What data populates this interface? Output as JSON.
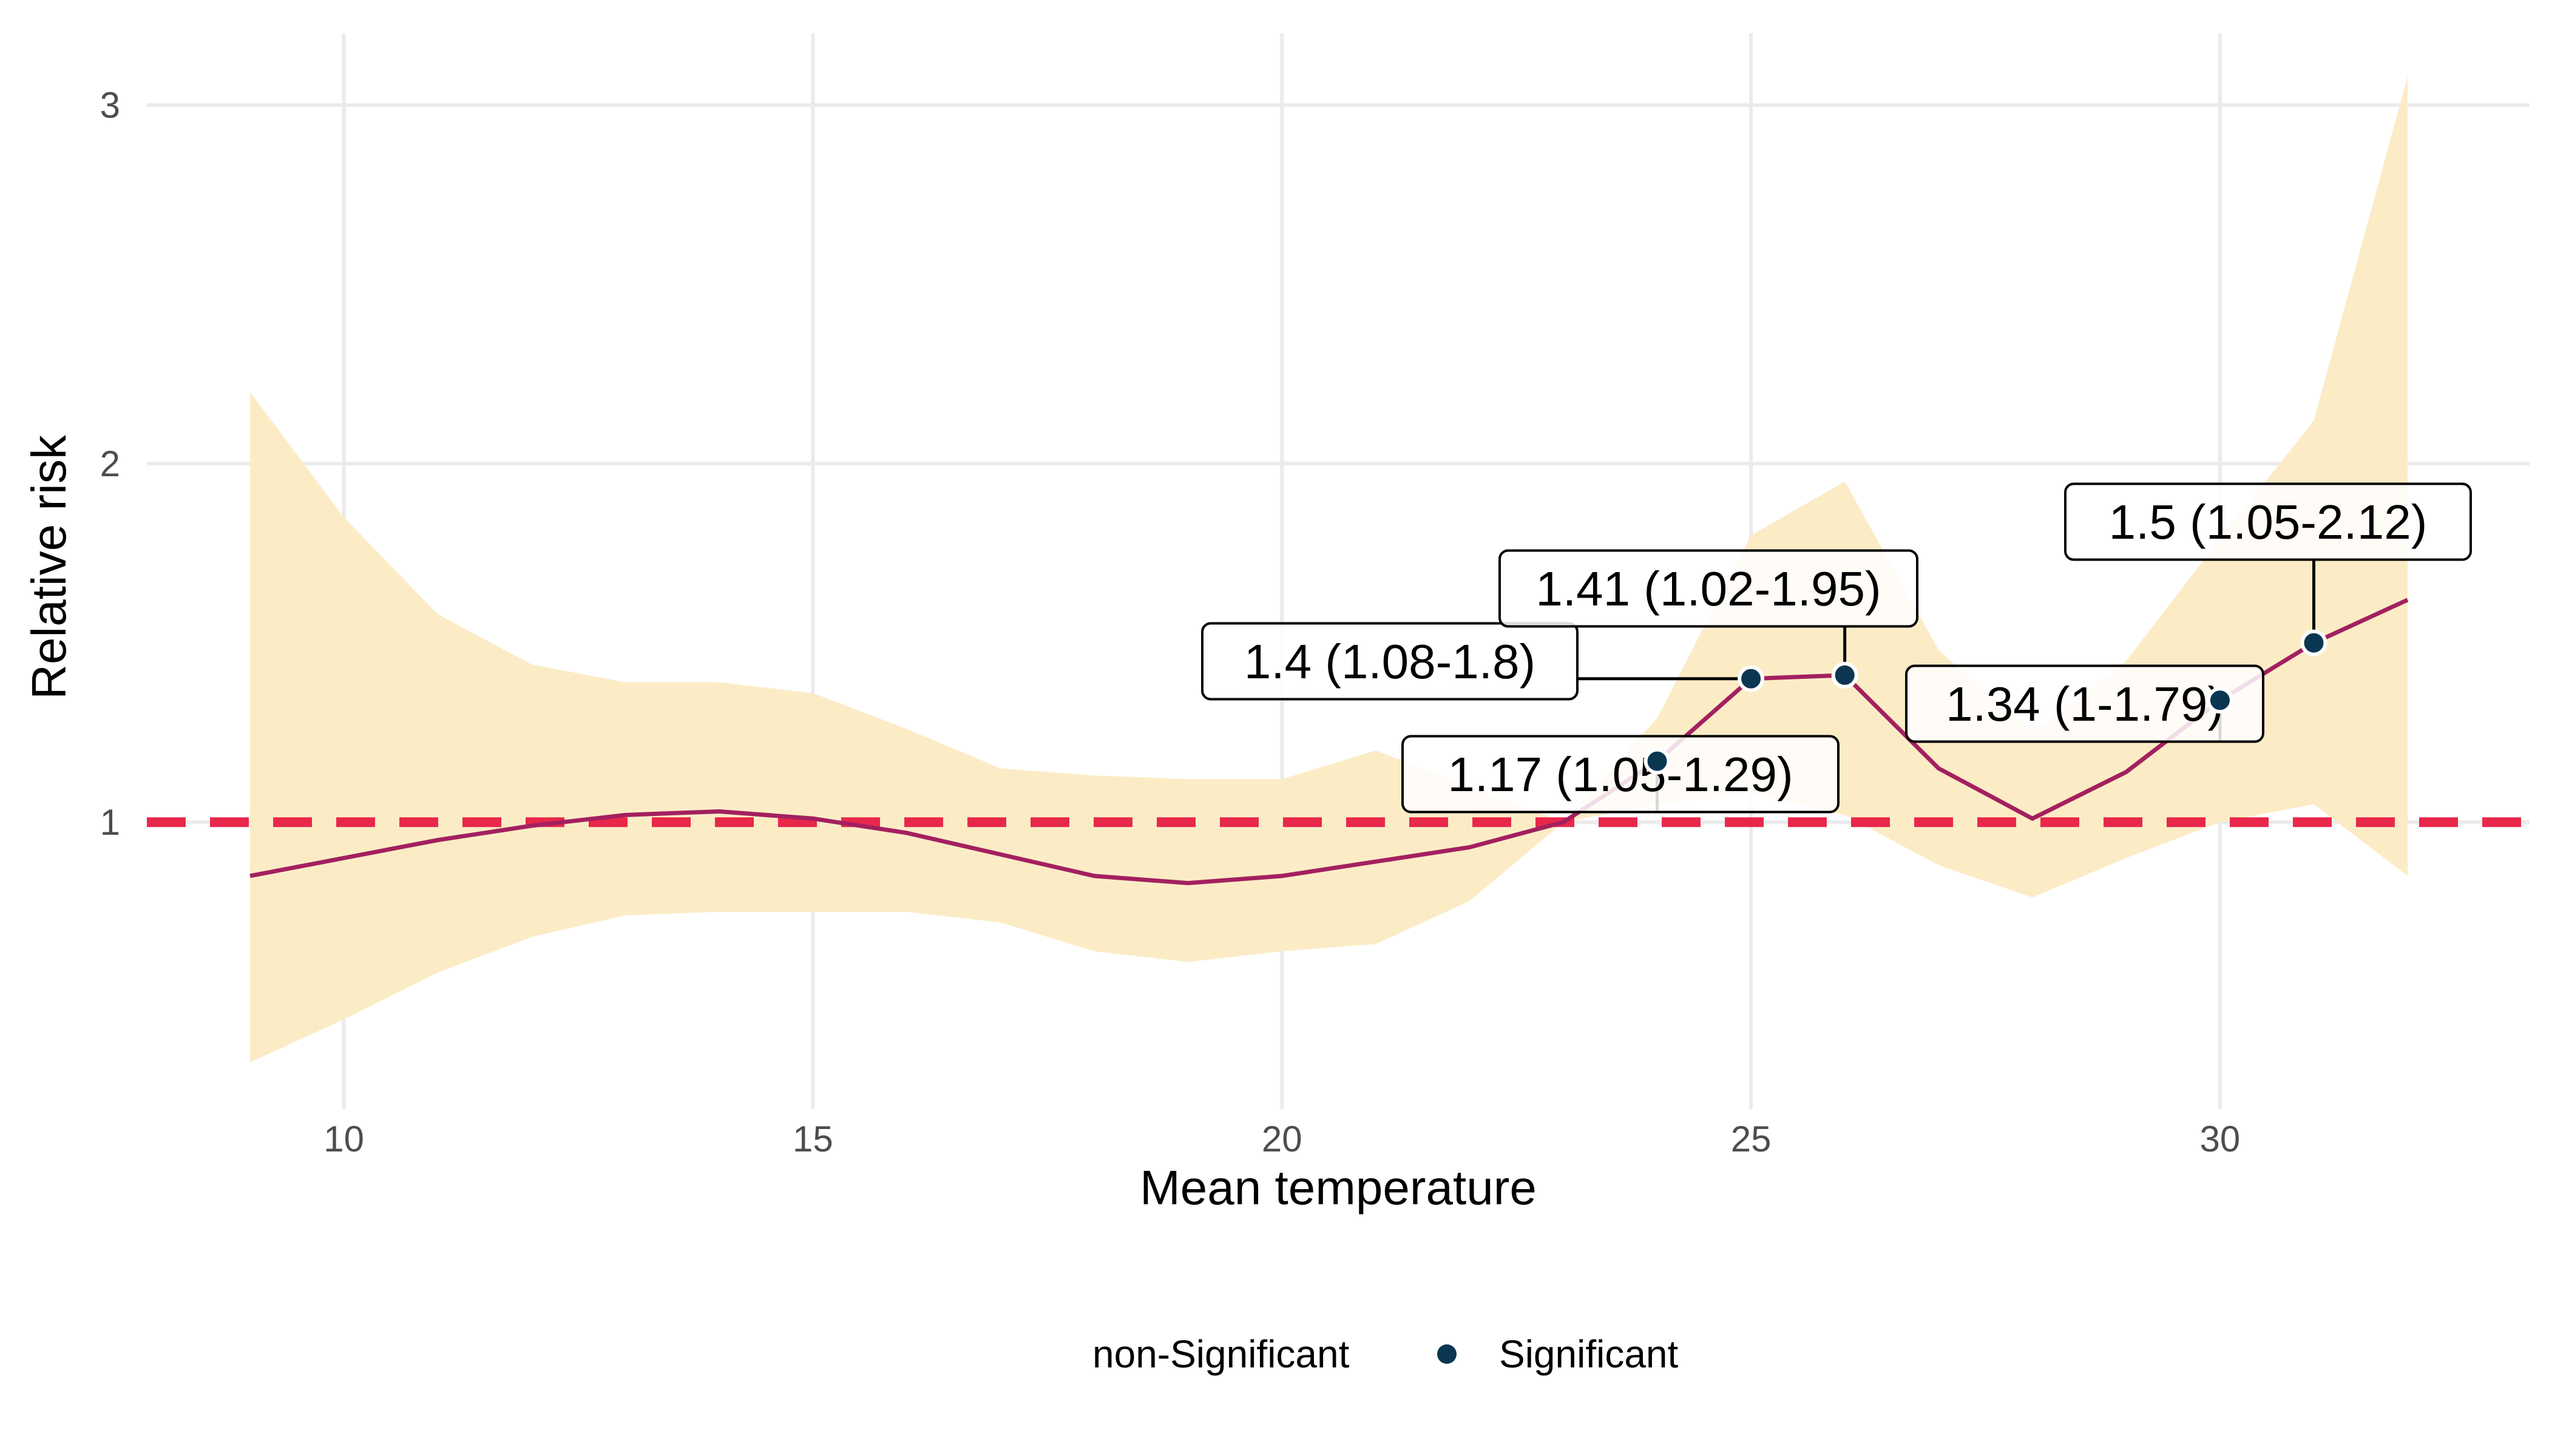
{
  "chart_data": {
    "type": "line",
    "title": "",
    "xlabel": "Mean temperature",
    "ylabel": "Relative risk",
    "xlim": [
      7.9,
      33.3
    ],
    "ylim": [
      0.2,
      3.2
    ],
    "xticks": [
      10,
      15,
      20,
      25,
      30
    ],
    "yticks": [
      1,
      2,
      3
    ],
    "grid": true,
    "reference_line": {
      "y": 1,
      "style": "dashed",
      "color": "#e8274b"
    },
    "colors": {
      "line": "#a3205f",
      "ribbon": "#fbecc6",
      "point": "#0b3651",
      "reference": "#e8274b"
    },
    "series": [
      {
        "x": [
          9,
          10,
          11,
          12,
          13,
          14,
          15,
          16,
          17,
          18,
          19,
          20,
          21,
          22,
          23,
          24,
          25,
          26,
          27,
          28,
          29,
          30,
          31,
          32
        ],
        "values": [
          0.85,
          0.9,
          0.95,
          0.99,
          1.02,
          1.03,
          1.01,
          0.97,
          0.91,
          0.85,
          0.83,
          0.85,
          0.89,
          0.93,
          1.0,
          1.17,
          1.4,
          1.41,
          1.15,
          1.01,
          1.14,
          1.34,
          1.5,
          1.62
        ],
        "lower": [
          0.33,
          0.45,
          0.58,
          0.68,
          0.74,
          0.75,
          0.75,
          0.75,
          0.72,
          0.64,
          0.61,
          0.64,
          0.66,
          0.78,
          1.0,
          1.05,
          1.08,
          1.02,
          0.88,
          0.79,
          0.9,
          1.0,
          1.05,
          0.85
        ],
        "upper": [
          2.2,
          1.85,
          1.58,
          1.44,
          1.39,
          1.39,
          1.36,
          1.26,
          1.15,
          1.13,
          1.12,
          1.12,
          1.2,
          1.1,
          1.0,
          1.29,
          1.8,
          1.95,
          1.48,
          1.25,
          1.45,
          1.79,
          2.12,
          3.08
        ]
      }
    ],
    "significant_points": [
      {
        "x": 24,
        "y": 1.17
      },
      {
        "x": 25,
        "y": 1.4
      },
      {
        "x": 26,
        "y": 1.41
      },
      {
        "x": 30,
        "y": 1.34
      },
      {
        "x": 31,
        "y": 1.5
      }
    ],
    "annotations": [
      {
        "text": "1.17 (1.05-1.29)",
        "x": 24,
        "y": 1.17
      },
      {
        "text": "1.4 (1.08-1.8)",
        "x": 25,
        "y": 1.4
      },
      {
        "text": "1.41 (1.02-1.95)",
        "x": 26,
        "y": 1.41
      },
      {
        "text": "1.34 (1-1.79)",
        "x": 30,
        "y": 1.34
      },
      {
        "text": "1.5 (1.05-2.12)",
        "x": 31,
        "y": 1.5
      }
    ],
    "legend": {
      "placement": "bottom",
      "entries": [
        {
          "name": "non-Significant",
          "marker": false
        },
        {
          "name": "Significant",
          "marker": true
        }
      ]
    }
  }
}
